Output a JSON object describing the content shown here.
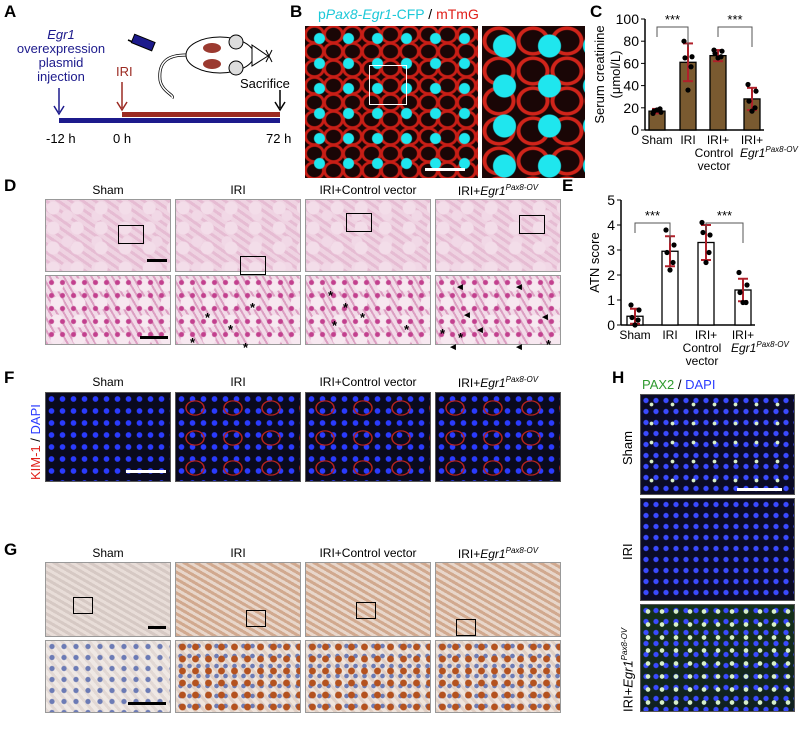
{
  "panels": {
    "a": "A",
    "b": "B",
    "c": "C",
    "d": "D",
    "e": "E",
    "f": "F",
    "g": "G",
    "h": "H"
  },
  "timeline": {
    "gene": "Egr1",
    "injection_lines": [
      "overexpression",
      "plasmid",
      "injection"
    ],
    "iri": "IRI",
    "sacrifice": "Sacrifice",
    "ticks": [
      "-12 h",
      "0 h",
      "72 h"
    ],
    "colors": {
      "injection": "#1c1a8c",
      "iri": "#9b2a22"
    }
  },
  "panel_b": {
    "title_prefix": "p",
    "title_gene1": "Pax8",
    "title_dash": "-",
    "title_gene2": "Egr1",
    "title_suffix": "-CFP",
    "title_sep": " / ",
    "title_red": "mTmG"
  },
  "groups": {
    "sham": "Sham",
    "iri": "IRI",
    "control": "IRI+Control vector",
    "egr1_base": "IRI+",
    "egr1_gene": "Egr1",
    "egr1_sup": "Pax8-OV"
  },
  "panel_f": {
    "ylabel_red": "KIM-1",
    "ylabel_sep": " / ",
    "ylabel_blue": "DAPI"
  },
  "panel_h": {
    "title_green": "PAX2",
    "title_sep": " / ",
    "title_blue": "DAPI",
    "rows": [
      "Sham",
      "IRI"
    ]
  },
  "chart_data": [
    {
      "type": "bar",
      "ylabel": "Serum creatinine (μmol/L)",
      "ylim": [
        0,
        100
      ],
      "yticks": [
        0,
        20,
        40,
        60,
        80,
        100
      ],
      "categories": [
        "Sham",
        "IRI",
        "IRI+ Control vector",
        "IRI+ Egr1 Pax8-OV"
      ],
      "values": [
        17,
        61,
        67,
        28
      ],
      "sd": [
        2,
        17,
        5,
        10
      ],
      "points": [
        [
          15,
          16,
          17,
          19,
          18
        ],
        [
          80,
          66,
          65,
          57,
          36
        ],
        [
          72,
          71,
          69,
          66,
          65
        ],
        [
          41,
          35,
          26,
          20,
          17
        ]
      ],
      "significance": [
        {
          "pair": [
            0,
            1
          ],
          "label": "***"
        },
        {
          "pair": [
            2,
            3
          ],
          "label": "***"
        }
      ],
      "bar_color": "#7a5a30"
    },
    {
      "type": "bar",
      "ylabel": "ATN score",
      "ylim": [
        0,
        5
      ],
      "yticks": [
        0,
        1,
        2,
        3,
        4,
        5
      ],
      "categories": [
        "Sham",
        "IRI",
        "IRI+ Control vector",
        "IRI+ Egr1 Pax8-OV"
      ],
      "values": [
        0.35,
        2.95,
        3.3,
        1.4
      ],
      "sd": [
        0.3,
        0.6,
        0.7,
        0.45
      ],
      "points": [
        [
          0.8,
          0.6,
          0.3,
          0.2,
          0
        ],
        [
          3.8,
          3.2,
          2.9,
          2.5,
          2.2
        ],
        [
          4.1,
          3.6,
          3.7,
          2.9,
          2.5
        ],
        [
          2.1,
          1.6,
          1.3,
          0.9,
          0.9
        ]
      ],
      "significance": [
        {
          "pair": [
            0,
            1
          ],
          "label": "***"
        },
        {
          "pair": [
            2,
            3
          ],
          "label": "***"
        }
      ],
      "bar_color": "#ffffff"
    }
  ]
}
